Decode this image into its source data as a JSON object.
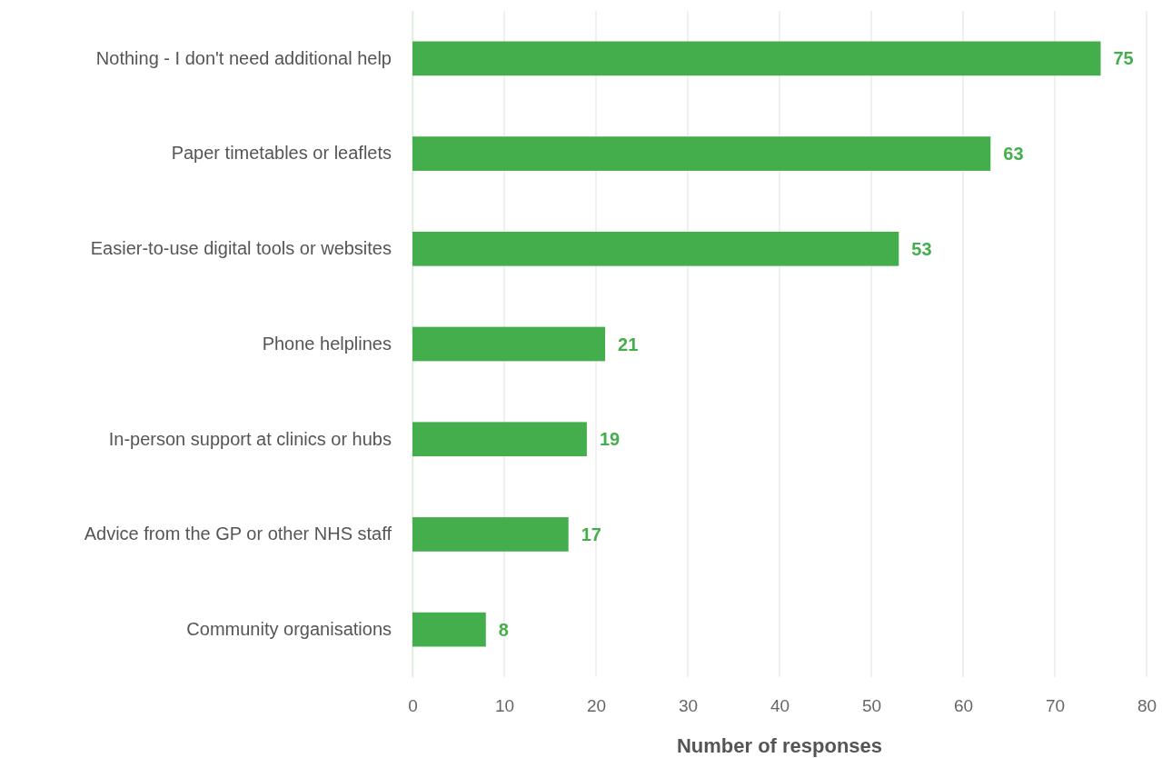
{
  "chart_data": {
    "type": "bar",
    "orientation": "horizontal",
    "xlabel": "Number of responses",
    "categories": [
      "Nothing - I don't need additional help",
      "Paper timetables or leaflets",
      "Easier-to-use digital tools or websites",
      "Phone helplines",
      "In-person support at clinics or hubs",
      "Advice from the GP or other NHS staff",
      "Community organisations"
    ],
    "values": [
      75,
      63,
      53,
      21,
      19,
      17,
      8
    ],
    "color": "#45ae4c",
    "xlim": [
      0,
      80
    ],
    "xticks": [
      0,
      10,
      20,
      30,
      40,
      50,
      60,
      70,
      80
    ],
    "grid": "x",
    "data_labels": true
  }
}
